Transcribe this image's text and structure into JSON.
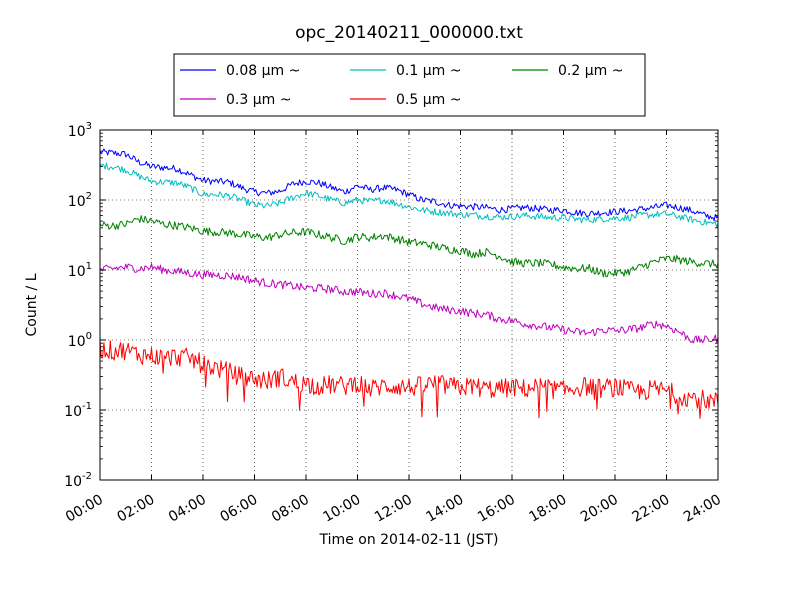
{
  "chart_data": {
    "type": "line",
    "title": "opc_20140211_000000.txt",
    "xlabel": "Time on 2014-02-11 (JST)",
    "ylabel": "Count / L",
    "x_unit": "hour",
    "xlim": [
      0,
      24
    ],
    "ylim": [
      0.01,
      1000
    ],
    "yscale": "log",
    "grid": true,
    "legend_position": "top-center",
    "x_tick_labels": [
      "00:00",
      "02:00",
      "04:00",
      "06:00",
      "08:00",
      "10:00",
      "12:00",
      "14:00",
      "16:00",
      "18:00",
      "20:00",
      "22:00",
      "24:00"
    ],
    "x_ticks": [
      0,
      2,
      4,
      6,
      8,
      10,
      12,
      14,
      16,
      18,
      20,
      22,
      24
    ],
    "y_ticks": [
      {
        "value": 0.01,
        "base": "10",
        "exp": "-2"
      },
      {
        "value": 0.1,
        "base": "10",
        "exp": "-1"
      },
      {
        "value": 1,
        "base": "10",
        "exp": "0"
      },
      {
        "value": 10,
        "base": "10",
        "exp": "1"
      },
      {
        "value": 100,
        "base": "10",
        "exp": "2"
      },
      {
        "value": 1000,
        "base": "10",
        "exp": "3"
      }
    ],
    "x": [
      0,
      0.5,
      1,
      1.5,
      2,
      2.5,
      3,
      3.5,
      4,
      4.5,
      5,
      5.5,
      6,
      6.5,
      7,
      7.5,
      8,
      8.5,
      9,
      9.5,
      10,
      10.5,
      11,
      11.5,
      12,
      12.5,
      13,
      13.5,
      14,
      14.5,
      15,
      15.5,
      16,
      16.5,
      17,
      17.5,
      18,
      18.5,
      19,
      19.5,
      20,
      20.5,
      21,
      21.5,
      22,
      22.5,
      23,
      23.5,
      24
    ],
    "series": [
      {
        "name": "0.08 µm ~",
        "color": "#0000ff",
        "noise": 0.05,
        "values": [
          480,
          470,
          450,
          350,
          300,
          290,
          280,
          230,
          190,
          185,
          180,
          150,
          130,
          125,
          135,
          170,
          185,
          175,
          150,
          130,
          160,
          140,
          150,
          140,
          120,
          100,
          95,
          85,
          82,
          80,
          78,
          72,
          75,
          78,
          75,
          72,
          72,
          66,
          64,
          66,
          68,
          70,
          74,
          78,
          84,
          78,
          70,
          60,
          55
        ]
      },
      {
        "name": "0.1 µm ~",
        "color": "#00bfbf",
        "noise": 0.05,
        "values": [
          310,
          300,
          270,
          220,
          185,
          180,
          175,
          150,
          120,
          120,
          115,
          100,
          85,
          82,
          90,
          110,
          125,
          115,
          100,
          90,
          100,
          95,
          100,
          90,
          80,
          72,
          68,
          65,
          62,
          61,
          59,
          57,
          58,
          60,
          58,
          56,
          56,
          53,
          52,
          54,
          55,
          56,
          60,
          62,
          63,
          58,
          52,
          48,
          45
        ]
      },
      {
        "name": "0.2 µm ~",
        "color": "#008000",
        "noise": 0.06,
        "values": [
          44,
          43,
          45,
          54,
          50,
          45,
          43,
          40,
          36,
          35,
          34,
          32,
          30,
          29,
          32,
          34,
          35,
          32,
          29,
          26,
          30,
          29,
          31,
          28,
          25,
          24,
          22,
          20,
          19,
          17,
          18,
          16,
          13,
          12.5,
          12.5,
          12,
          11,
          10.5,
          10.5,
          9,
          9,
          9.5,
          11,
          13,
          14.5,
          14,
          13,
          12.5,
          12
        ]
      },
      {
        "name": "0.3 µm ~",
        "color": "#bf00bf",
        "noise": 0.06,
        "values": [
          10,
          10.5,
          11,
          10.5,
          11,
          10,
          9.5,
          9,
          8.5,
          8.5,
          8.3,
          7.8,
          7,
          6.5,
          6.2,
          5.9,
          5.5,
          5.5,
          5.3,
          4.9,
          4.9,
          4.6,
          4.7,
          4.3,
          3.9,
          3.3,
          2.9,
          2.7,
          2.6,
          2.4,
          2.3,
          2.0,
          1.9,
          1.7,
          1.6,
          1.5,
          1.4,
          1.3,
          1.25,
          1.4,
          1.35,
          1.4,
          1.5,
          1.7,
          1.6,
          1.3,
          1.0,
          1.0,
          1.05
        ]
      },
      {
        "name": "0.5 µm ~",
        "color": "#ff0000",
        "noise": 0.14,
        "values": [
          0.75,
          0.7,
          0.72,
          0.62,
          0.6,
          0.55,
          0.58,
          0.55,
          0.45,
          0.4,
          0.35,
          0.3,
          0.28,
          0.26,
          0.3,
          0.25,
          0.24,
          0.22,
          0.23,
          0.22,
          0.25,
          0.2,
          0.22,
          0.22,
          0.21,
          0.22,
          0.24,
          0.22,
          0.21,
          0.22,
          0.2,
          0.2,
          0.21,
          0.2,
          0.22,
          0.2,
          0.19,
          0.21,
          0.22,
          0.2,
          0.22,
          0.19,
          0.18,
          0.2,
          0.19,
          0.16,
          0.15,
          0.14,
          0.13
        ]
      }
    ]
  }
}
